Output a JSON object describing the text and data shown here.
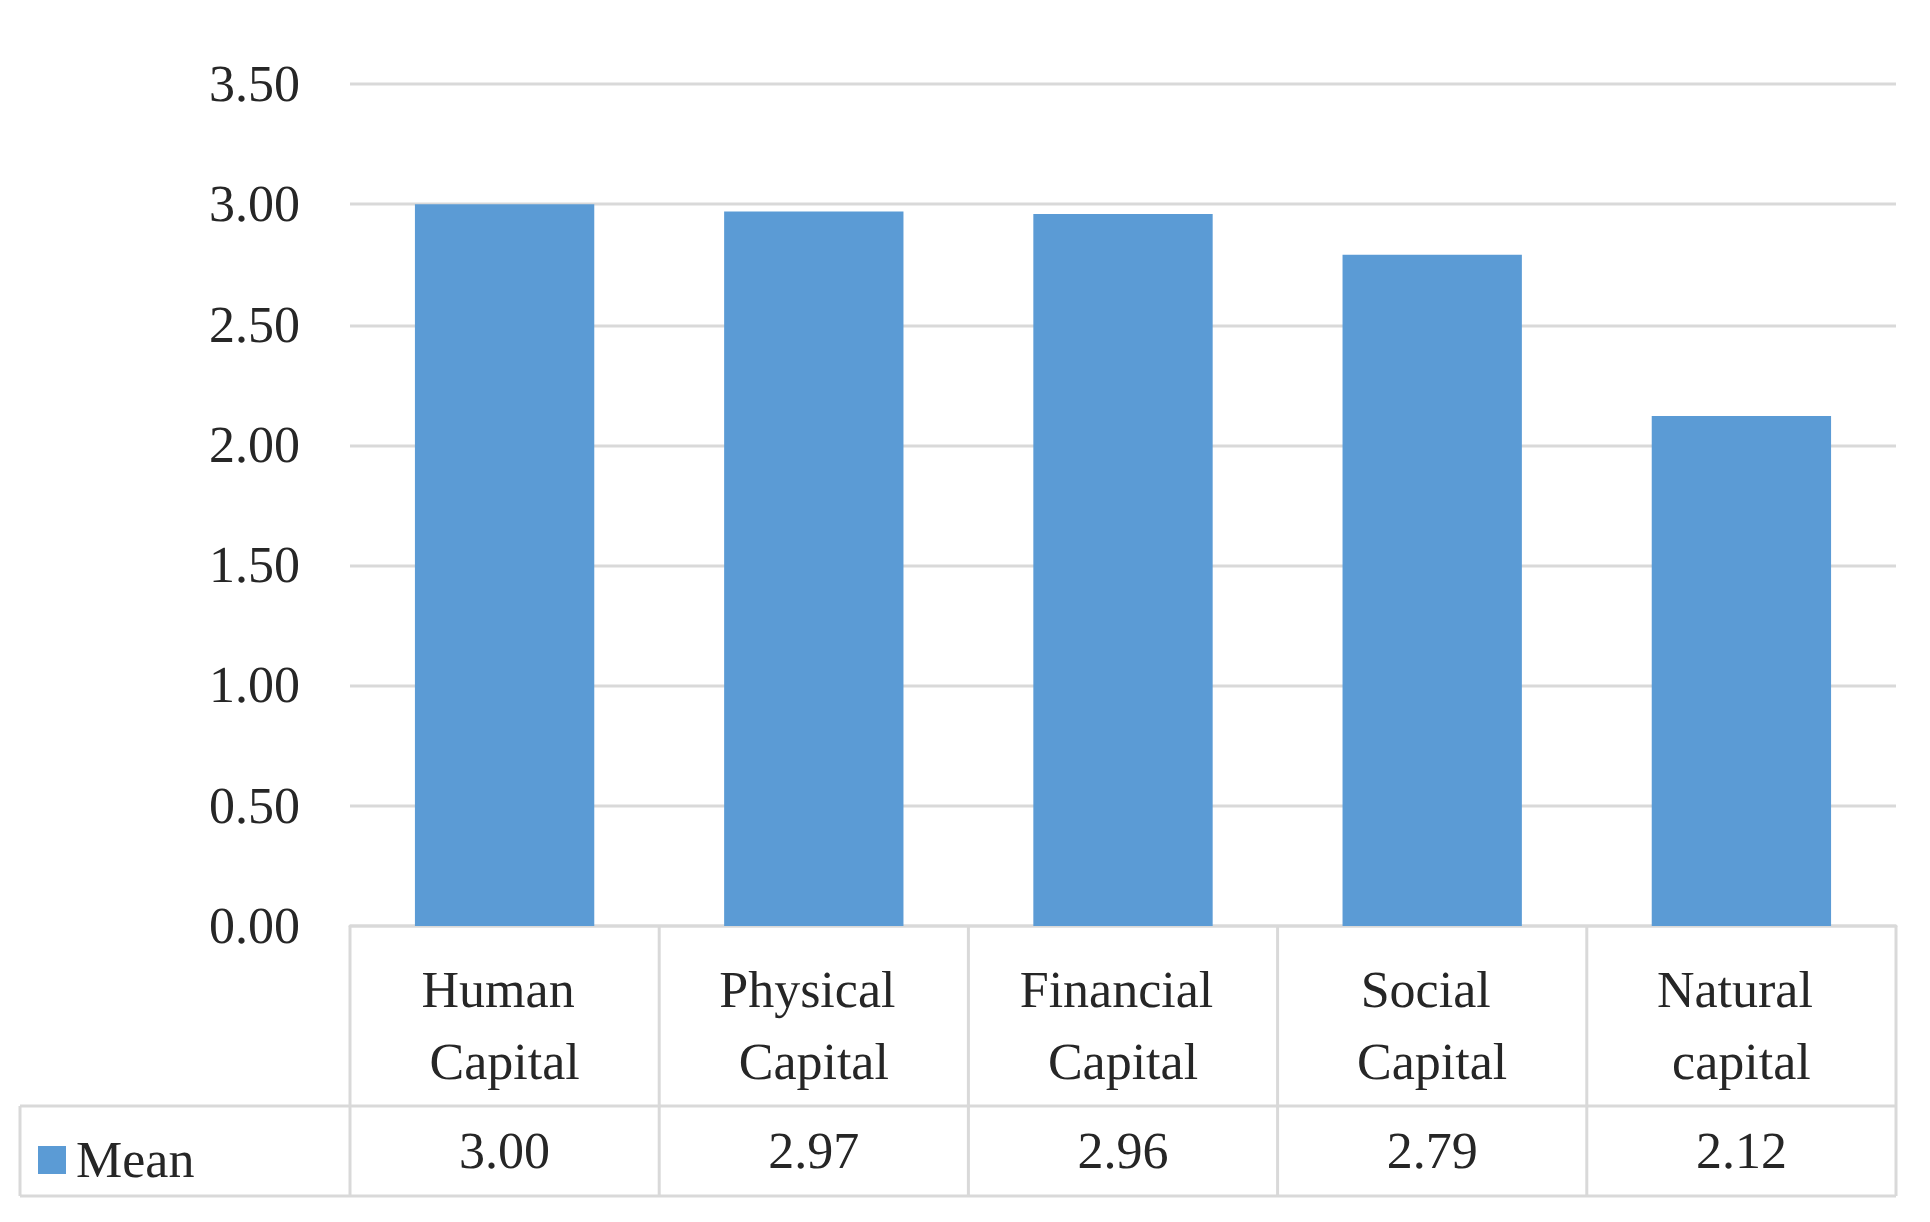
{
  "chart_data": {
    "type": "bar",
    "categories": [
      "Human Capital",
      "Physical Capital",
      "Financial Capital",
      "Social Capital",
      "Natural capital"
    ],
    "series": [
      {
        "name": "Mean",
        "color": "#5b9bd5",
        "values": [
          3.0,
          2.97,
          2.96,
          2.79,
          2.12
        ],
        "value_labels": [
          "3.00",
          "2.97",
          "2.96",
          "2.79",
          "2.12"
        ]
      }
    ],
    "ylim": [
      0,
      3.5
    ],
    "yticks": [
      {
        "value": 0,
        "label": "0.00"
      },
      {
        "value": 0.5,
        "label": "0.50"
      },
      {
        "value": 1,
        "label": "1.00"
      },
      {
        "value": 1.5,
        "label": "1.50"
      },
      {
        "value": 2,
        "label": "2.00"
      },
      {
        "value": 2.5,
        "label": "2.50"
      },
      {
        "value": 3,
        "label": "3.00"
      },
      {
        "value": 3.5,
        "label": "3.50"
      }
    ],
    "grid": "y",
    "legend": "bottom"
  }
}
